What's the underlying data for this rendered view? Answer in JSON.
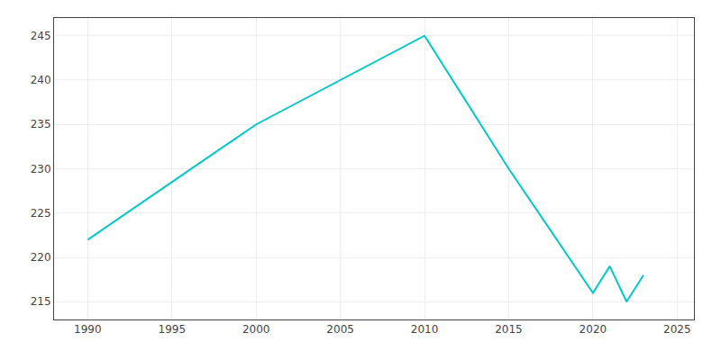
{
  "chart_data": {
    "type": "line",
    "x": [
      1990,
      2000,
      2010,
      2015,
      2020,
      2021,
      2022,
      2023
    ],
    "values": [
      222,
      235,
      245,
      230,
      216,
      219,
      215,
      218
    ],
    "color": "#00c8c8",
    "xlim": [
      1988,
      2026
    ],
    "ylim": [
      213,
      247
    ],
    "xticks": [
      1990,
      1995,
      2000,
      2005,
      2010,
      2015,
      2020,
      2025
    ],
    "yticks": [
      215,
      220,
      225,
      230,
      235,
      240,
      245
    ],
    "grid": true
  }
}
